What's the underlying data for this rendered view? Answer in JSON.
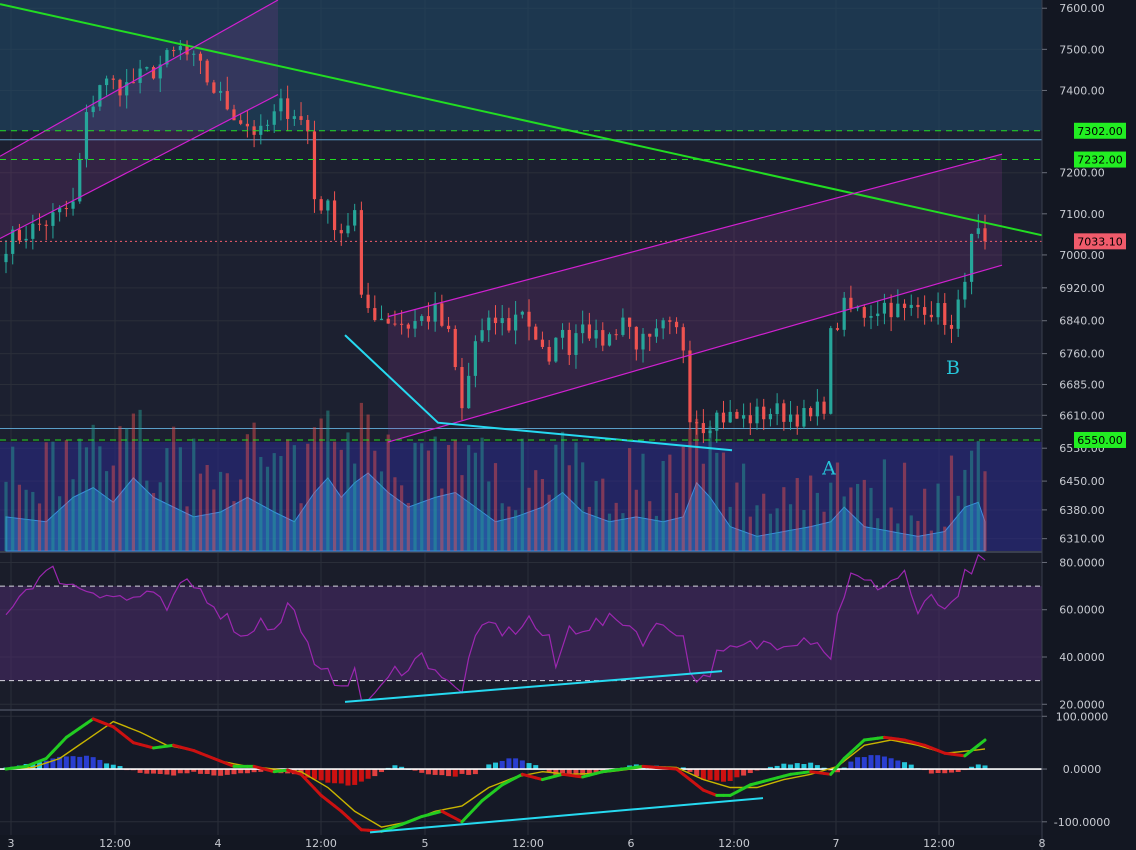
{
  "colors": {
    "background": "#131722",
    "grid": "#2a2e39",
    "up_candle": "#26a69a",
    "down_candle": "#ef5350",
    "trend_green": "#22dd22",
    "channel_magenta": "#d020d0",
    "annotation_cyan": "#26d9f0",
    "rsi_line": "#9c27b0",
    "hline_dashed": "#22dd22",
    "price_tag": "#f05b6b",
    "level_tag": "#22ee22",
    "macd_fast": "#22cc22",
    "macd_slow": "#c8b400",
    "macd_red": "#cc1111"
  },
  "chart_data": [
    {
      "type": "candlestick",
      "panel": "price",
      "y_range": [
        6280,
        7620
      ],
      "y_ticks": [
        "7600.00",
        "7500.00",
        "7400.00",
        "7200.00",
        "7100.00",
        "7000.00",
        "6920.00",
        "6840.00",
        "6760.00",
        "6685.00",
        "6610.00",
        "6530.00",
        "6450.00",
        "6380.00",
        "6310.00"
      ],
      "x_labels": [
        "3",
        "12:00",
        "4",
        "12:00",
        "5",
        "12:00",
        "6",
        "12:00",
        "7",
        "12:00",
        "8"
      ],
      "current_price": "7033.10",
      "levels": [
        {
          "label": "7302.00",
          "value": 7302
        },
        {
          "label": "7232.00",
          "value": 7232
        },
        {
          "label": "6550.00",
          "value": 6550
        }
      ],
      "annotations": [
        {
          "text": "A",
          "near_price": 6520
        },
        {
          "text": "B",
          "near_price": 6740
        }
      ],
      "price_path": [
        [
          0,
          7030
        ],
        [
          6,
          7080
        ],
        [
          10,
          7120
        ],
        [
          12,
          7330
        ],
        [
          14,
          7420
        ],
        [
          18,
          7410
        ],
        [
          22,
          7450
        ],
        [
          26,
          7500
        ],
        [
          29,
          7450
        ],
        [
          32,
          7380
        ],
        [
          35,
          7330
        ],
        [
          38,
          7290
        ],
        [
          41,
          7360
        ],
        [
          43,
          7350
        ],
        [
          45,
          7300
        ],
        [
          46,
          7140
        ],
        [
          48,
          7110
        ],
        [
          50,
          7060
        ],
        [
          52,
          7100
        ],
        [
          53,
          6880
        ],
        [
          56,
          6850
        ],
        [
          60,
          6830
        ],
        [
          64,
          6860
        ],
        [
          66,
          6800
        ],
        [
          67,
          6720
        ],
        [
          68,
          6620
        ],
        [
          70,
          6790
        ],
        [
          73,
          6840
        ],
        [
          75,
          6830
        ],
        [
          77,
          6870
        ],
        [
          79,
          6800
        ],
        [
          80,
          6760
        ],
        [
          81,
          6720
        ],
        [
          82,
          6820
        ],
        [
          84,
          6780
        ],
        [
          86,
          6850
        ],
        [
          88,
          6790
        ],
        [
          90,
          6800
        ],
        [
          92,
          6850
        ],
        [
          94,
          6790
        ],
        [
          96,
          6780
        ],
        [
          98,
          6820
        ],
        [
          100,
          6810
        ],
        [
          101,
          6780
        ],
        [
          102,
          6620
        ],
        [
          104,
          6590
        ],
        [
          106,
          6610
        ],
        [
          110,
          6600
        ],
        [
          114,
          6620
        ],
        [
          118,
          6610
        ],
        [
          120,
          6600
        ],
        [
          122,
          6640
        ],
        [
          123,
          6800
        ],
        [
          125,
          6870
        ],
        [
          128,
          6860
        ],
        [
          131,
          6880
        ],
        [
          134,
          6860
        ],
        [
          137,
          6880
        ],
        [
          140,
          6850
        ],
        [
          141,
          6810
        ],
        [
          142,
          6870
        ],
        [
          143,
          6960
        ],
        [
          144,
          7030
        ],
        [
          145,
          7045
        ],
        [
          146,
          7033
        ]
      ]
    },
    {
      "type": "area",
      "panel": "volume",
      "profile": [
        [
          0,
          0.35
        ],
        [
          6,
          0.3
        ],
        [
          10,
          0.55
        ],
        [
          13,
          0.65
        ],
        [
          16,
          0.5
        ],
        [
          19,
          0.75
        ],
        [
          22,
          0.55
        ],
        [
          25,
          0.45
        ],
        [
          28,
          0.35
        ],
        [
          32,
          0.4
        ],
        [
          36,
          0.55
        ],
        [
          40,
          0.4
        ],
        [
          43,
          0.3
        ],
        [
          46,
          0.6
        ],
        [
          48,
          0.75
        ],
        [
          50,
          0.55
        ],
        [
          52,
          0.7
        ],
        [
          54,
          0.8
        ],
        [
          57,
          0.6
        ],
        [
          60,
          0.45
        ],
        [
          64,
          0.55
        ],
        [
          67,
          0.6
        ],
        [
          70,
          0.45
        ],
        [
          73,
          0.3
        ],
        [
          76,
          0.35
        ],
        [
          80,
          0.45
        ],
        [
          83,
          0.6
        ],
        [
          86,
          0.4
        ],
        [
          90,
          0.3
        ],
        [
          94,
          0.35
        ],
        [
          98,
          0.3
        ],
        [
          101,
          0.35
        ],
        [
          103,
          0.7
        ],
        [
          105,
          0.55
        ],
        [
          108,
          0.25
        ],
        [
          112,
          0.15
        ],
        [
          116,
          0.2
        ],
        [
          120,
          0.25
        ],
        [
          123,
          0.3
        ],
        [
          125,
          0.45
        ],
        [
          128,
          0.25
        ],
        [
          132,
          0.2
        ],
        [
          136,
          0.15
        ],
        [
          140,
          0.2
        ],
        [
          143,
          0.45
        ],
        [
          145,
          0.5
        ],
        [
          146,
          0.3
        ]
      ]
    },
    {
      "type": "line",
      "panel": "rsi",
      "y_range": [
        18,
        84
      ],
      "y_ticks": [
        "80.0000",
        "60.0000",
        "40.0000",
        "20.0000"
      ],
      "bands": [
        70,
        30
      ],
      "values_path": [
        [
          0,
          60
        ],
        [
          4,
          72
        ],
        [
          7,
          76
        ],
        [
          10,
          70
        ],
        [
          14,
          68
        ],
        [
          18,
          64
        ],
        [
          21,
          67
        ],
        [
          24,
          60
        ],
        [
          27,
          72
        ],
        [
          30,
          66
        ],
        [
          33,
          56
        ],
        [
          36,
          48
        ],
        [
          38,
          58
        ],
        [
          40,
          50
        ],
        [
          42,
          62
        ],
        [
          44,
          54
        ],
        [
          46,
          34
        ],
        [
          48,
          32
        ],
        [
          50,
          30
        ],
        [
          52,
          32
        ],
        [
          53,
          22
        ],
        [
          56,
          26
        ],
        [
          58,
          34
        ],
        [
          62,
          40
        ],
        [
          64,
          36
        ],
        [
          66,
          28
        ],
        [
          68,
          24
        ],
        [
          69,
          42
        ],
        [
          72,
          54
        ],
        [
          75,
          50
        ],
        [
          78,
          56
        ],
        [
          81,
          46
        ],
        [
          82,
          36
        ],
        [
          84,
          52
        ],
        [
          88,
          54
        ],
        [
          92,
          56
        ],
        [
          95,
          48
        ],
        [
          98,
          54
        ],
        [
          100,
          52
        ],
        [
          101,
          48
        ],
        [
          102,
          34
        ],
        [
          104,
          30
        ],
        [
          106,
          40
        ],
        [
          110,
          44
        ],
        [
          114,
          46
        ],
        [
          118,
          48
        ],
        [
          121,
          48
        ],
        [
          123,
          38
        ],
        [
          124,
          60
        ],
        [
          126,
          74
        ],
        [
          129,
          70
        ],
        [
          132,
          72
        ],
        [
          134,
          76
        ],
        [
          136,
          58
        ],
        [
          138,
          64
        ],
        [
          141,
          60
        ],
        [
          142,
          64
        ],
        [
          143,
          74
        ],
        [
          145,
          80
        ],
        [
          146,
          78
        ]
      ]
    },
    {
      "type": "line",
      "panel": "macd",
      "y_range": [
        -125,
        110
      ],
      "y_ticks": [
        "100.0000",
        "0.0000",
        "-100.0000"
      ],
      "fast_path": [
        [
          0,
          0
        ],
        [
          3,
          5
        ],
        [
          6,
          20
        ],
        [
          9,
          60
        ],
        [
          13,
          95
        ],
        [
          16,
          80
        ],
        [
          19,
          50
        ],
        [
          22,
          40
        ],
        [
          25,
          45
        ],
        [
          28,
          35
        ],
        [
          31,
          20
        ],
        [
          34,
          5
        ],
        [
          37,
          5
        ],
        [
          40,
          -5
        ],
        [
          42,
          -2
        ],
        [
          44,
          -10
        ],
        [
          47,
          -50
        ],
        [
          50,
          -80
        ],
        [
          53,
          -115
        ],
        [
          56,
          -118
        ],
        [
          59,
          -105
        ],
        [
          62,
          -90
        ],
        [
          65,
          -80
        ],
        [
          68,
          -100
        ],
        [
          71,
          -60
        ],
        [
          74,
          -30
        ],
        [
          77,
          -10
        ],
        [
          80,
          -20
        ],
        [
          83,
          -10
        ],
        [
          86,
          -15
        ],
        [
          89,
          -5
        ],
        [
          92,
          0
        ],
        [
          95,
          5
        ],
        [
          98,
          2
        ],
        [
          100,
          0
        ],
        [
          102,
          -20
        ],
        [
          104,
          -40
        ],
        [
          106,
          -50
        ],
        [
          108,
          -50
        ],
        [
          111,
          -30
        ],
        [
          114,
          -20
        ],
        [
          117,
          -10
        ],
        [
          120,
          -5
        ],
        [
          123,
          -10
        ],
        [
          125,
          20
        ],
        [
          128,
          55
        ],
        [
          131,
          60
        ],
        [
          134,
          55
        ],
        [
          137,
          45
        ],
        [
          140,
          30
        ],
        [
          143,
          25
        ],
        [
          145,
          45
        ],
        [
          146,
          55
        ]
      ],
      "slow_path": [
        [
          0,
          0
        ],
        [
          4,
          3
        ],
        [
          8,
          20
        ],
        [
          12,
          55
        ],
        [
          16,
          90
        ],
        [
          20,
          70
        ],
        [
          24,
          45
        ],
        [
          28,
          35
        ],
        [
          32,
          15
        ],
        [
          36,
          5
        ],
        [
          40,
          0
        ],
        [
          44,
          -5
        ],
        [
          48,
          -35
        ],
        [
          52,
          -80
        ],
        [
          56,
          -110
        ],
        [
          60,
          -100
        ],
        [
          64,
          -80
        ],
        [
          68,
          -70
        ],
        [
          72,
          -35
        ],
        [
          76,
          -15
        ],
        [
          80,
          -5
        ],
        [
          84,
          -10
        ],
        [
          88,
          -8
        ],
        [
          92,
          -2
        ],
        [
          96,
          5
        ],
        [
          100,
          3
        ],
        [
          104,
          -20
        ],
        [
          108,
          -35
        ],
        [
          112,
          -35
        ],
        [
          116,
          -20
        ],
        [
          120,
          -10
        ],
        [
          124,
          5
        ],
        [
          128,
          45
        ],
        [
          132,
          55
        ],
        [
          136,
          45
        ],
        [
          140,
          30
        ],
        [
          144,
          35
        ],
        [
          146,
          38
        ]
      ],
      "hist_path": [
        [
          0,
          2
        ],
        [
          4,
          10
        ],
        [
          8,
          22
        ],
        [
          12,
          26
        ],
        [
          16,
          8
        ],
        [
          20,
          -8
        ],
        [
          24,
          -12
        ],
        [
          28,
          -6
        ],
        [
          32,
          -12
        ],
        [
          36,
          -6
        ],
        [
          40,
          -4
        ],
        [
          44,
          -12
        ],
        [
          48,
          -24
        ],
        [
          52,
          -32
        ],
        [
          55,
          -12
        ],
        [
          58,
          8
        ],
        [
          62,
          -6
        ],
        [
          66,
          -14
        ],
        [
          70,
          -8
        ],
        [
          72,
          8
        ],
        [
          76,
          22
        ],
        [
          79,
          8
        ],
        [
          82,
          -12
        ],
        [
          86,
          -10
        ],
        [
          90,
          -4
        ],
        [
          94,
          8
        ],
        [
          98,
          6
        ],
        [
          101,
          2
        ],
        [
          104,
          -22
        ],
        [
          108,
          -22
        ],
        [
          112,
          -4
        ],
        [
          116,
          10
        ],
        [
          120,
          12
        ],
        [
          124,
          -6
        ],
        [
          127,
          24
        ],
        [
          130,
          26
        ],
        [
          134,
          12
        ],
        [
          138,
          -8
        ],
        [
          142,
          -4
        ],
        [
          145,
          8
        ]
      ]
    }
  ]
}
